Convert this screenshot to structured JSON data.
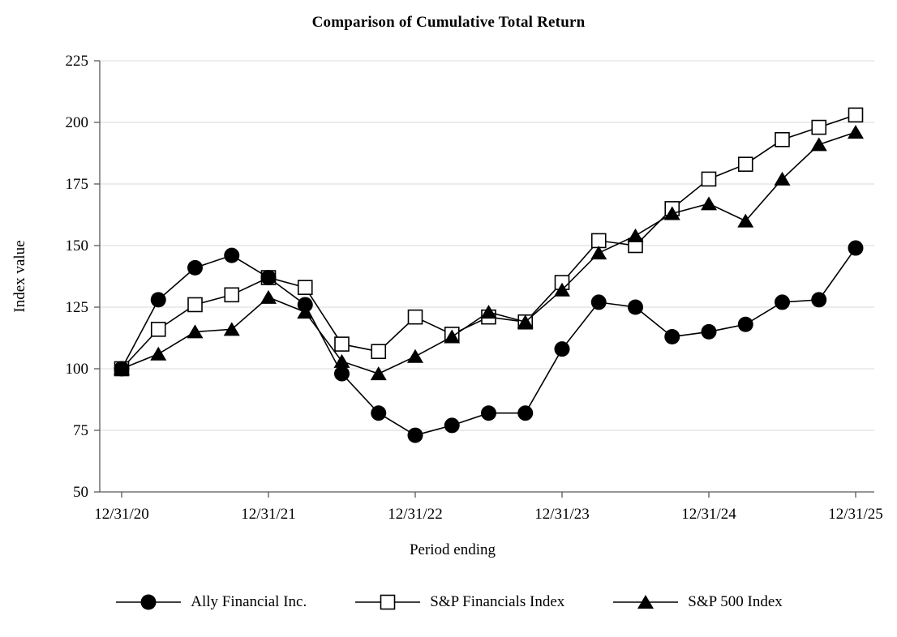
{
  "chart_data": {
    "type": "line",
    "title": "Comparison of Cumulative Total Return",
    "xlabel": "Period ending",
    "ylabel": "Index value",
    "ylim": [
      50,
      225
    ],
    "y_ticks": [
      50,
      75,
      100,
      125,
      150,
      175,
      200,
      225
    ],
    "x_tick_labels": [
      "12/31/20",
      "12/31/21",
      "12/31/22",
      "12/31/23",
      "12/31/24",
      "12/31/25"
    ],
    "x_tick_positions": [
      0,
      4,
      8,
      12,
      16,
      20
    ],
    "grid": true,
    "legend_position": "bottom",
    "colors": {
      "line": "#000000",
      "grid": "#d9d9d9",
      "axis": "#595959",
      "background": "#ffffff"
    },
    "series": [
      {
        "name": "Ally Financial Inc.",
        "marker": "filled-circle",
        "color": "#000000",
        "values": [
          100,
          128,
          141,
          146,
          137,
          126,
          98,
          82,
          73,
          77,
          82,
          82,
          108,
          127,
          125,
          113,
          115,
          118,
          127,
          128,
          149
        ]
      },
      {
        "name": "S&P Financials Index",
        "marker": "open-square",
        "color": "#000000",
        "values": [
          100,
          116,
          126,
          130,
          137,
          133,
          110,
          107,
          121,
          114,
          121,
          119,
          135,
          152,
          150,
          165,
          177,
          183,
          193,
          198,
          203
        ]
      },
      {
        "name": "S&P 500 Index",
        "marker": "filled-triangle",
        "color": "#000000",
        "values": [
          100,
          106,
          115,
          116,
          129,
          123,
          103,
          98,
          105,
          113,
          123,
          119,
          132,
          147,
          154,
          163,
          167,
          160,
          177,
          191,
          196
        ]
      }
    ]
  }
}
